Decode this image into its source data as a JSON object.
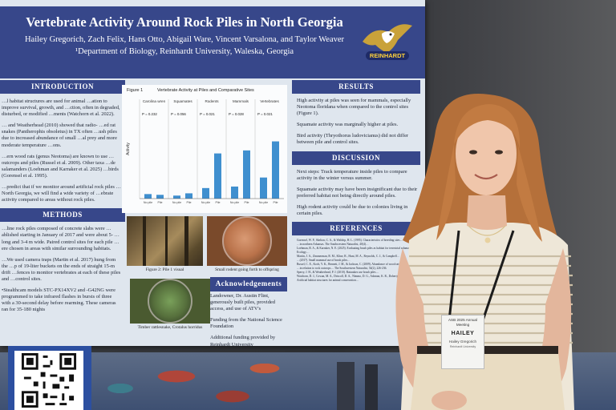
{
  "poster": {
    "title": "Vertebrate Activity Around Rock Piles in North Georgia",
    "authors": "Hailey Gregorich, Zach Felix, Hans Otto, Abigail Ware, Vincent Varsalona, and Taylor Weaver",
    "department": "¹Department of Biology, Reinhardt University, Waleska, Georgia",
    "logo_text": "REINHARDT",
    "sections": {
      "introduction": "INTRODUCTION",
      "methods": "METHODS",
      "results": "RESULTS",
      "discussion": "DISCUSSION",
      "references": "REFERENCES",
      "acknowledgements": "Acknowledgements"
    },
    "intro_paragraphs": [
      "…l habitat structures are used for animal …ation to improve survival, growth, and …ction, often in degraded, disturbed, or modified …ments (Watchorn et al. 2022).",
      "… and Weatherhead (2010) showed that radio- …ed rat snakes (Pantherophis obsoletus) in TX often …ush piles due to increased abundance of small …al prey and more moderate temperature …ons.",
      "…ern wood rats (genus Neotoma) are known to use …outcrops and piles (Russel et al. 2009). Other taxa …de salamanders (Loehman and Karraker et al. 2025) …birds (Gorensel et al. 1995).",
      "…predict that if we monitor around artificial rock piles …North Georgia, we will find a wide variety of …ebrate activity compared to areas without rock piles."
    ],
    "methods_paragraphs": [
      "…line rock piles composed of concrete slabs were …ablished starting in January of 2017 and were about 5- …long and 3-4 m wide. Paired control sites for each pile …ere chosen in areas with similar surrounding habitats.",
      "…We used camera traps (Martin et al. 2017) hung from the …p of 19-liter buckets on the ends of straight 15-m drift …fences to monitor vertebrates at each of these piles and …control sites.",
      "•Stealthcam models STC-PX14XV2 and -G42NG were programmed to take infrared flashes in bursts of three with a 30-second delay before rearming. These cameras ran for 35-180 nights"
    ],
    "results_items": [
      "High activity at piles was seen for mammals, especially Neotoma floridana when compared to the control sites (Figure 1).",
      "Squamate activity was marginally higher at piles.",
      "Bird activity (Thryothorus ludovicianus) did not differ between pile and control sites."
    ],
    "discussion_items": [
      "Next steps: Track temperature inside piles to compare activity in the winter versus summer.",
      "Squamate activity may have been insignificant due to their preferred habitat not being directly around piles.",
      "High rodent activity could be due to colonies living in certain piles."
    ],
    "references_lines": [
      "Gorensel, W. P., Skelton, C. A., & Waldrip, H. L. (1995). Characteristics of breeding sites…",
      "…in northern Arkansas. The Southwestern Naturalist, 40(4)…",
      "Loehman, R. A., & Karraker, N. E. (2025). Evaluating brush piles as habitat for terrestrial salamanders. Ecology…",
      "Martin, J. A., Zimmerman, R. M., Kline, R., Hunt, M. A., Reynolds, C. J., & Campbell…",
      "…(2017). Small mammal use of brush piles…",
      "Russel, C. E., Koch, Y. K., Bennett, J. M., & Jackson, C. (2009). Abundance of wood rats…",
      "…in relation to rock outcrops… The Southwestern Naturalist, 54(2), 226-236.",
      "Sperry, J. H., & Weatherhead, P. J. (2010). Ratsnakes use brush piles…",
      "Watchorn, D. J., Cowan, M. A., Driscoll, D. A., Nimmo, D. G., Ashman, K. R., Doherty, T. S. (2022). Artificial habitat structures for animal conservation…"
    ],
    "figure": {
      "label": "Figure 1",
      "title": "Vertebrate Activity at Piles and Comparative Sites",
      "caption_photo1": "Figure 2: Pile 1 visual",
      "caption_photo2": "Small rodent going forth to offspring",
      "caption_photo3": "Timber rattlesnake, Crotalus horridus"
    },
    "acknowledgements_items": [
      "Landowner, Dr. Austin Flint, generously built piles, provided access, and use of ATV's",
      "Funding from the National Science Foundation",
      "Additional funding provided by Reinhardt University"
    ]
  },
  "chart_data": {
    "type": "bar",
    "title": "Vertebrate Activity at Piles and Comparative Sites",
    "panels": [
      "Carolina wren",
      "Squamates",
      "Rodents",
      "Mammals",
      "Vertebrates"
    ],
    "p_values": [
      "P = 0.232",
      "P = 0.056",
      "P = 0.021",
      "P = 0.028",
      "P = 0.021"
    ],
    "categories": [
      "No pile",
      "Pile"
    ],
    "values": [
      [
        0.3,
        0.25
      ],
      [
        0.2,
        0.35
      ],
      [
        0.7,
        3.0
      ],
      [
        0.8,
        3.2
      ],
      [
        1.4,
        3.8
      ]
    ],
    "ylabel": "Activity",
    "xlabel": "",
    "ylim": [
      0,
      5
    ],
    "grid": false,
    "bar_color": "#3f8fcf"
  },
  "badge": {
    "event": "ASB 2025 Annual Meeting",
    "name": "HAILEY",
    "full_name": "Hailey Gregorich",
    "affiliation": "Reinhardt University"
  },
  "qr_sign": {
    "colors": {
      "frame": "#2c4fa0"
    }
  }
}
